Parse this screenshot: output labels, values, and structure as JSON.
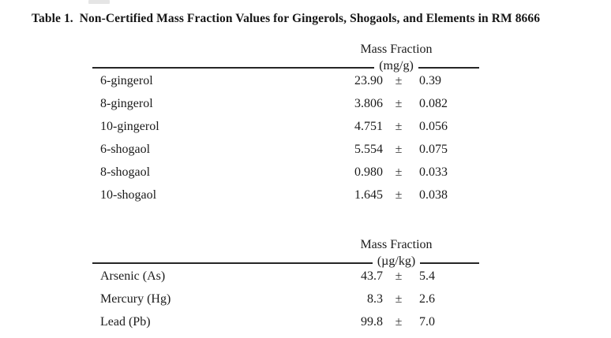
{
  "page": {
    "title": "Table 1.  Non-Certified Mass Fraction Values for Gingerols, Shogaols, and Elements in RM 8666"
  },
  "tables": [
    {
      "header": {
        "title": "Mass Fraction",
        "unit": "(mg/g)"
      },
      "rows": [
        {
          "name": "6-gingerol",
          "value": "23.90",
          "pm": "±",
          "unc": "0.39"
        },
        {
          "name": "8-gingerol",
          "value": "3.806",
          "pm": "±",
          "unc": "0.082"
        },
        {
          "name": "10-gingerol",
          "value": "4.751",
          "pm": "±",
          "unc": "0.056"
        },
        {
          "name": "6-shogaol",
          "value": "5.554",
          "pm": "±",
          "unc": "0.075"
        },
        {
          "name": "8-shogaol",
          "value": "0.980",
          "pm": "±",
          "unc": "0.033"
        },
        {
          "name": "10-shogaol",
          "value": "1.645",
          "pm": "±",
          "unc": "0.038"
        }
      ]
    },
    {
      "header": {
        "title": "Mass Fraction",
        "unit": "(µg/kg)"
      },
      "rows": [
        {
          "name": "Arsenic (As)",
          "value": "43.7",
          "pm": "±",
          "unc": "5.4"
        },
        {
          "name": "Mercury (Hg)",
          "value": "8.3",
          "pm": "±",
          "unc": "2.6"
        },
        {
          "name": "Lead (Pb)",
          "value": "99.8",
          "pm": "±",
          "unc": "7.0"
        }
      ]
    }
  ]
}
